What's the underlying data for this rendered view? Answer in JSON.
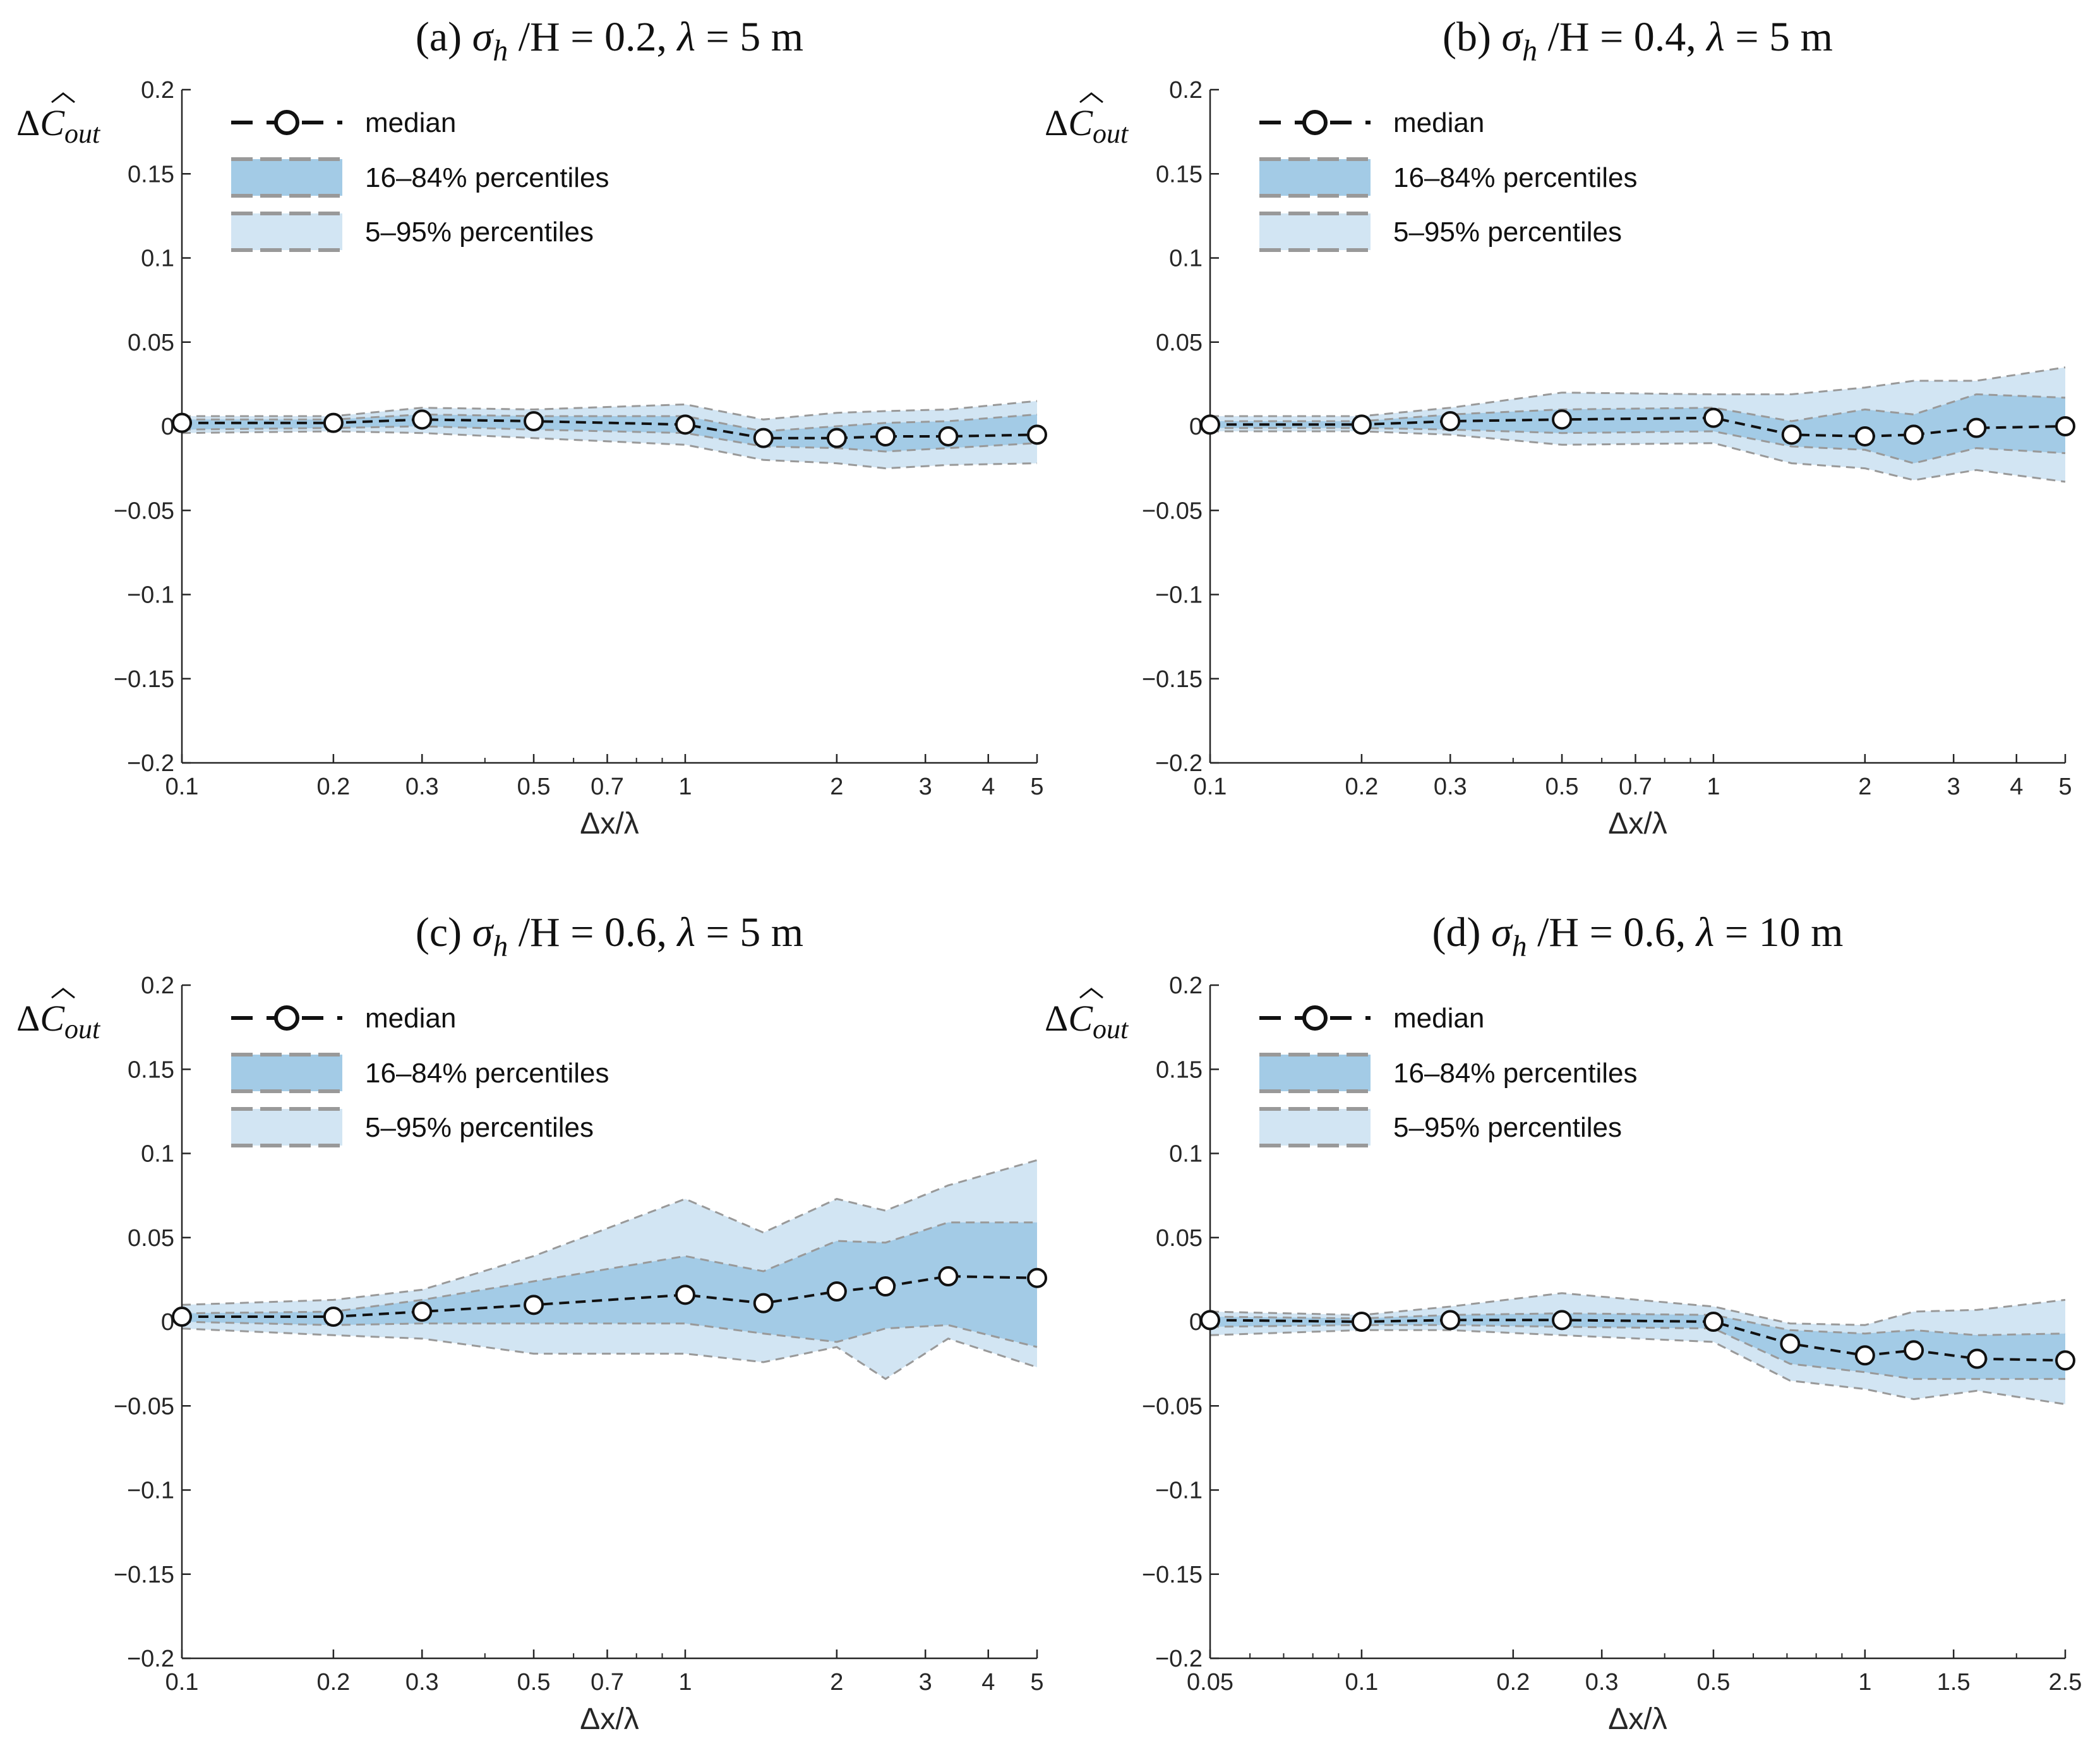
{
  "colors": {
    "band_inner": "#a3cbe6",
    "band_outer": "#d2e5f3",
    "band_edge": "#999999",
    "median_line": "#111111",
    "marker_fill": "#ffffff",
    "axis": "#262626"
  },
  "legend": {
    "median": "median",
    "p16_84": "16–84% percentiles",
    "p5_95": "5–95% percentiles"
  },
  "chart_data": [
    {
      "panel": "a",
      "type": "line",
      "title": "(a)  σh /H = 0.2, λ = 5 m",
      "title_parts": {
        "prefix": "(a)",
        "sigma": "σ",
        "sub": "h",
        "rest": " /H = 0.2, ",
        "lambda": "λ",
        "tail": " = 5 m"
      },
      "xlabel": "Δx/λ",
      "ylabel": {
        "delta": "Δ",
        "symbol": "C",
        "sub": "out"
      },
      "xscale": "log",
      "xlim": [
        0.1,
        5
      ],
      "ylim": [
        -0.2,
        0.2
      ],
      "xticks": [
        0.1,
        0.2,
        0.3,
        0.5,
        0.7,
        1,
        2,
        3,
        4,
        5
      ],
      "xtick_labels": [
        "0.1",
        "0.2",
        "0.3",
        "0.5",
        "0.7",
        "1",
        "2",
        "3",
        "4",
        "5"
      ],
      "yticks": [
        -0.2,
        -0.15,
        -0.1,
        -0.05,
        0,
        0.05,
        0.1,
        0.15,
        0.2
      ],
      "ytick_labels": [
        "−0.2",
        "−0.15",
        "−0.1",
        "−0.05",
        "0",
        "0.05",
        "0.1",
        "0.15",
        "0.2"
      ],
      "x": [
        0.1,
        0.2,
        0.3,
        0.5,
        1,
        1.43,
        2,
        2.5,
        3.33,
        5
      ],
      "median": [
        0.002,
        0.002,
        0.004,
        0.003,
        0.001,
        -0.007,
        -0.007,
        -0.006,
        -0.006,
        -0.005
      ],
      "p16": [
        -0.002,
        -0.001,
        0.0,
        -0.002,
        -0.004,
        -0.012,
        -0.013,
        -0.015,
        -0.013,
        -0.01
      ],
      "p84": [
        0.004,
        0.004,
        0.007,
        0.006,
        0.006,
        -0.003,
        0.0,
        0.002,
        0.003,
        0.007
      ],
      "p5": [
        -0.004,
        -0.003,
        -0.004,
        -0.007,
        -0.011,
        -0.02,
        -0.022,
        -0.025,
        -0.023,
        -0.022
      ],
      "p95": [
        0.006,
        0.006,
        0.011,
        0.01,
        0.013,
        0.004,
        0.008,
        0.009,
        0.01,
        0.015
      ]
    },
    {
      "panel": "b",
      "type": "line",
      "title": "(b)  σh /H = 0.4, λ = 5 m",
      "title_parts": {
        "prefix": "(b)",
        "sigma": "σ",
        "sub": "h",
        "rest": " /H = 0.4, ",
        "lambda": "λ",
        "tail": " = 5 m"
      },
      "xlabel": "Δx/λ",
      "ylabel": {
        "delta": "Δ",
        "symbol": "C",
        "sub": "out"
      },
      "xscale": "log",
      "xlim": [
        0.1,
        5
      ],
      "ylim": [
        -0.2,
        0.2
      ],
      "xticks": [
        0.1,
        0.2,
        0.3,
        0.5,
        0.7,
        1,
        2,
        3,
        4,
        5
      ],
      "xtick_labels": [
        "0.1",
        "0.2",
        "0.3",
        "0.5",
        "0.7",
        "1",
        "2",
        "3",
        "4",
        "5"
      ],
      "yticks": [
        -0.2,
        -0.15,
        -0.1,
        -0.05,
        0,
        0.05,
        0.1,
        0.15,
        0.2
      ],
      "ytick_labels": [
        "−0.2",
        "−0.15",
        "−0.1",
        "−0.05",
        "0",
        "0.05",
        "0.1",
        "0.15",
        "0.2"
      ],
      "x": [
        0.1,
        0.2,
        0.3,
        0.5,
        1,
        1.43,
        2,
        2.5,
        3.33,
        5
      ],
      "median": [
        0.001,
        0.001,
        0.003,
        0.004,
        0.005,
        -0.005,
        -0.006,
        -0.005,
        -0.001,
        0.0
      ],
      "p16": [
        -0.001,
        -0.001,
        -0.002,
        -0.004,
        -0.003,
        -0.012,
        -0.014,
        -0.022,
        -0.013,
        -0.016
      ],
      "p84": [
        0.003,
        0.003,
        0.007,
        0.01,
        0.011,
        0.003,
        0.01,
        0.007,
        0.019,
        0.017
      ],
      "p5": [
        -0.003,
        -0.003,
        -0.005,
        -0.011,
        -0.01,
        -0.022,
        -0.025,
        -0.032,
        -0.026,
        -0.033
      ],
      "p95": [
        0.006,
        0.006,
        0.011,
        0.02,
        0.019,
        0.019,
        0.023,
        0.027,
        0.027,
        0.035
      ]
    },
    {
      "panel": "c",
      "type": "line",
      "title": "(c)  σh /H = 0.6, λ = 5 m",
      "title_parts": {
        "prefix": "(c)",
        "sigma": "σ",
        "sub": "h",
        "rest": " /H = 0.6, ",
        "lambda": "λ",
        "tail": " = 5 m"
      },
      "xlabel": "Δx/λ",
      "ylabel": {
        "delta": "Δ",
        "symbol": "C",
        "sub": "out"
      },
      "xscale": "log",
      "xlim": [
        0.1,
        5
      ],
      "ylim": [
        -0.2,
        0.2
      ],
      "xticks": [
        0.1,
        0.2,
        0.3,
        0.5,
        0.7,
        1,
        2,
        3,
        4,
        5
      ],
      "xtick_labels": [
        "0.1",
        "0.2",
        "0.3",
        "0.5",
        "0.7",
        "1",
        "2",
        "3",
        "4",
        "5"
      ],
      "yticks": [
        -0.2,
        -0.15,
        -0.1,
        -0.05,
        0,
        0.05,
        0.1,
        0.15,
        0.2
      ],
      "ytick_labels": [
        "−0.2",
        "−0.15",
        "−0.1",
        "−0.05",
        "0",
        "0.05",
        "0.1",
        "0.15",
        "0.2"
      ],
      "x": [
        0.1,
        0.2,
        0.3,
        0.5,
        1,
        1.43,
        2,
        2.5,
        3.33,
        5
      ],
      "median": [
        0.003,
        0.003,
        0.006,
        0.01,
        0.016,
        0.011,
        0.018,
        0.021,
        0.027,
        0.026
      ],
      "p16": [
        0.0,
        -0.002,
        -0.001,
        -0.001,
        -0.001,
        -0.007,
        -0.012,
        -0.004,
        -0.002,
        -0.015
      ],
      "p84": [
        0.005,
        0.006,
        0.013,
        0.024,
        0.039,
        0.03,
        0.048,
        0.047,
        0.059,
        0.059
      ],
      "p5": [
        -0.004,
        -0.008,
        -0.01,
        -0.019,
        -0.019,
        -0.024,
        -0.015,
        -0.034,
        -0.01,
        -0.027
      ],
      "p95": [
        0.01,
        0.013,
        0.019,
        0.039,
        0.073,
        0.053,
        0.073,
        0.066,
        0.081,
        0.096
      ]
    },
    {
      "panel": "d",
      "type": "line",
      "title": "(d)  σh /H = 0.6, λ = 10 m",
      "title_parts": {
        "prefix": "(d)",
        "sigma": "σ",
        "sub": "h",
        "rest": " /H = 0.6, ",
        "lambda": "λ",
        "tail": " = 10 m"
      },
      "xlabel": "Δx/λ",
      "ylabel": {
        "delta": "Δ",
        "symbol": "C",
        "sub": "out"
      },
      "xscale": "log",
      "xlim": [
        0.05,
        2.5
      ],
      "ylim": [
        -0.2,
        0.2
      ],
      "xticks": [
        0.05,
        0.1,
        0.2,
        0.3,
        0.5,
        1,
        1.5,
        2.5
      ],
      "xtick_labels": [
        "0.05",
        "0.1",
        "0.2",
        "0.3",
        "0.5",
        "1",
        "1.5",
        "2.5"
      ],
      "yticks": [
        -0.2,
        -0.15,
        -0.1,
        -0.05,
        0,
        0.05,
        0.1,
        0.15,
        0.2
      ],
      "ytick_labels": [
        "−0.2",
        "−0.15",
        "−0.1",
        "−0.05",
        "0",
        "0.05",
        "0.1",
        "0.15",
        "0.2"
      ],
      "x": [
        0.05,
        0.1,
        0.15,
        0.25,
        0.5,
        0.71,
        1,
        1.25,
        1.67,
        2.5
      ],
      "median": [
        0.001,
        0.0,
        0.001,
        0.001,
        0.0,
        -0.013,
        -0.02,
        -0.017,
        -0.022,
        -0.023
      ],
      "p16": [
        -0.003,
        -0.002,
        -0.002,
        -0.003,
        -0.004,
        -0.025,
        -0.03,
        -0.034,
        -0.034,
        -0.034
      ],
      "p84": [
        0.003,
        0.002,
        0.004,
        0.005,
        0.004,
        -0.005,
        -0.007,
        -0.005,
        -0.008,
        -0.007
      ],
      "p5": [
        -0.008,
        -0.005,
        -0.005,
        -0.008,
        -0.012,
        -0.035,
        -0.04,
        -0.046,
        -0.041,
        -0.049
      ],
      "p95": [
        0.006,
        0.004,
        0.009,
        0.017,
        0.009,
        -0.001,
        -0.002,
        0.006,
        0.007,
        0.013
      ]
    }
  ]
}
